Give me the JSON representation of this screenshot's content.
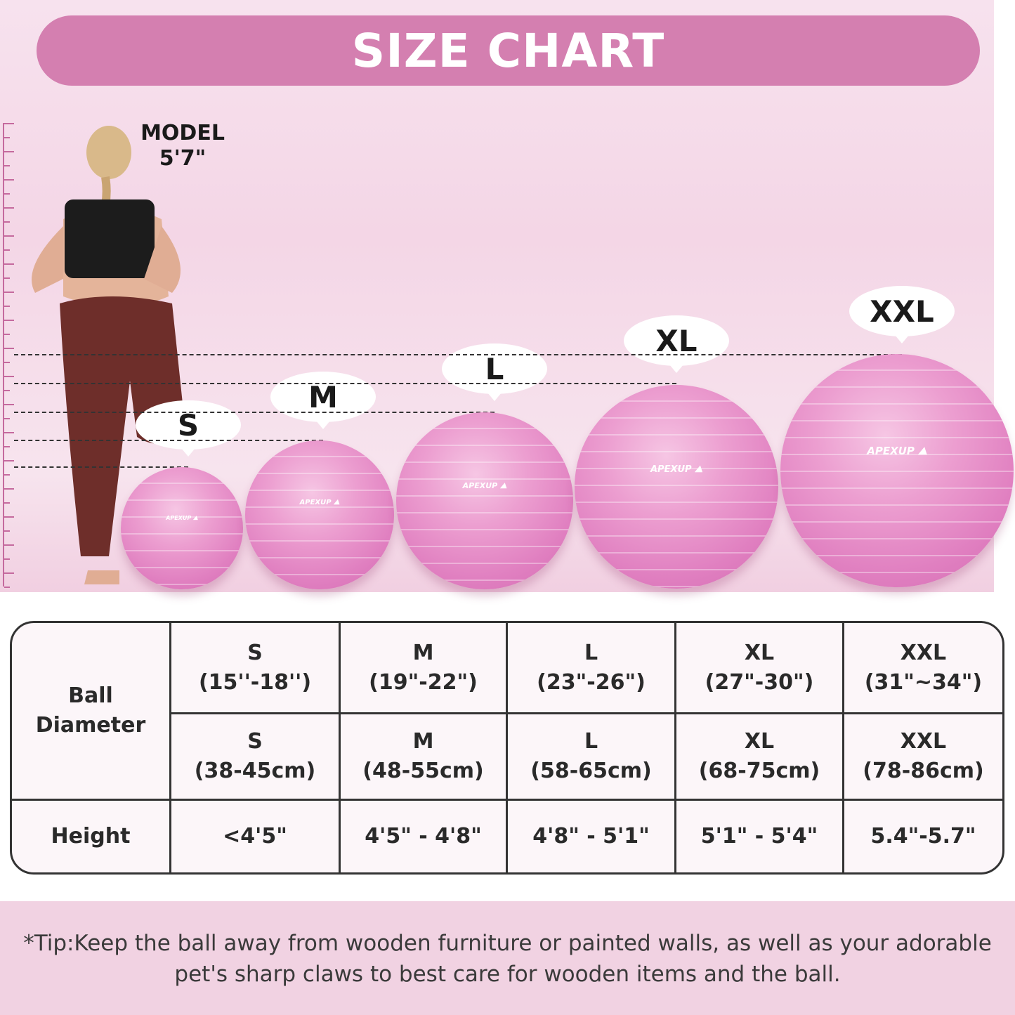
{
  "header": {
    "title": "SIZE CHART"
  },
  "model": {
    "label": "MODEL",
    "height": "5'7\""
  },
  "brand": "APEXUP",
  "sizes": [
    "S",
    "M",
    "L",
    "XL",
    "XXL"
  ],
  "table": {
    "row_headers": {
      "diameter": "Ball Diameter",
      "height": "Height"
    },
    "inches": [
      "(15''-18'')",
      "(19\"-22\")",
      "(23\"-26\")",
      "(27\"-30\")",
      "(31\"~34\")"
    ],
    "cm": [
      "(38-45cm)",
      "(48-55cm)",
      "(58-65cm)",
      "(68-75cm)",
      "(78-86cm)"
    ],
    "heights": [
      "<4'5\"",
      "4'5\" - 4'8\"",
      "4'8\" - 5'1\"",
      "5'1\" - 5'4\"",
      "5.4\"-5.7\""
    ]
  },
  "tip": "*Tip:Keep the ball away from wooden furniture or painted walls, as well as your adorable pet's sharp claws to best care for wooden items and the ball.",
  "colors": {
    "accent": "#d47fb0",
    "ball": "#e68cc6",
    "tip_band": "#f1d2e2"
  }
}
